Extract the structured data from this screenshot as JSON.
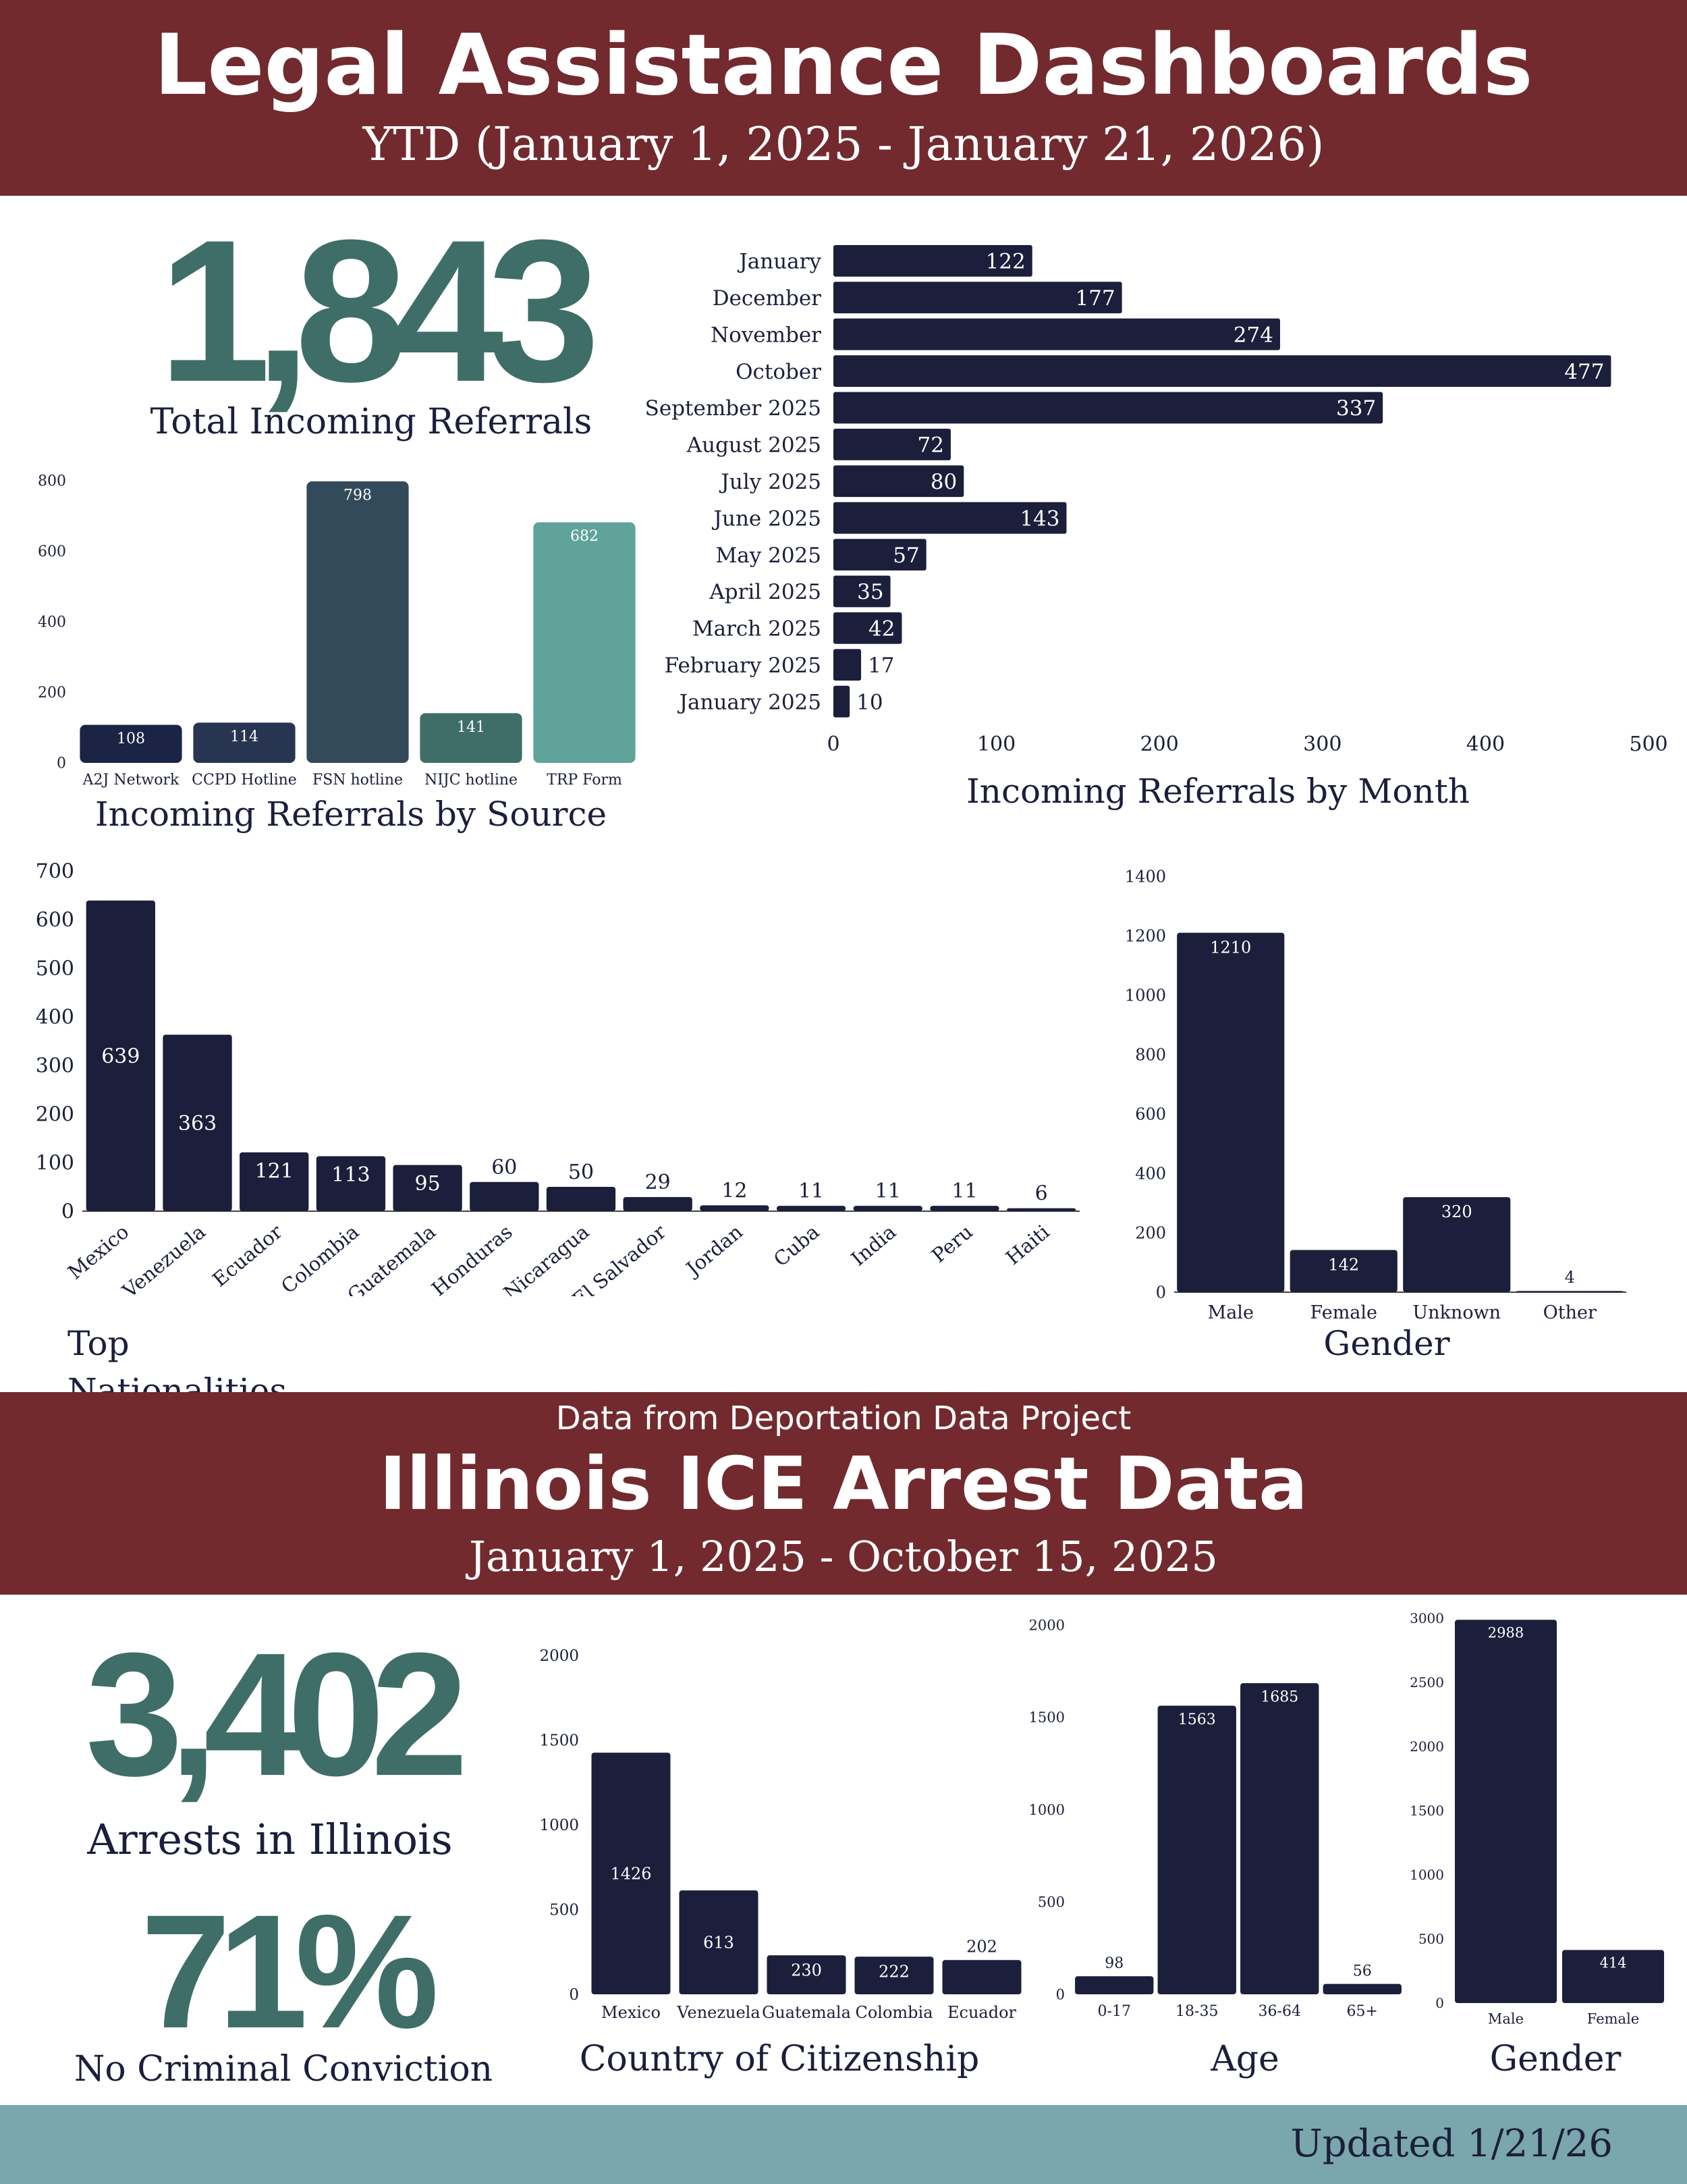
{
  "colors": {
    "header_bg": "#722a2f",
    "navy": "#1b1f3b",
    "teal_text": "#3f6e68",
    "footer_bg": "#7aa6ad",
    "source_colors": [
      "#1b2445",
      "#283552",
      "#334a5a",
      "#3f6e68",
      "#5fa39b"
    ]
  },
  "header": {
    "title": "Legal Assistance Dashboards",
    "subtitle": "YTD (January 1, 2025 - January 21, 2026)"
  },
  "kpi_referrals": {
    "value": "1,843",
    "label": "Total Incoming Referrals"
  },
  "section2": {
    "kicker": "Data from Deportation Data Project",
    "title": "Illinois ICE Arrest Data",
    "subtitle": "January 1, 2025 - October 15, 2025"
  },
  "kpi_arrests": {
    "value": "3,402",
    "label": "Arrests in Illinois"
  },
  "kpi_no_conviction": {
    "value": "71%",
    "label": "No Criminal Conviction"
  },
  "footer": {
    "updated": "Updated 1/21/26"
  },
  "chart_data": [
    {
      "id": "source",
      "type": "bar",
      "title": "Incoming Referrals by Source",
      "categories": [
        "A2J Network",
        "CCPD Hotline",
        "FSN hotline",
        "NIJC hotline",
        "TRP Form"
      ],
      "values": [
        108,
        114,
        798,
        141,
        682
      ],
      "ylim": [
        0,
        800
      ],
      "yticks": [
        0,
        200,
        400,
        600,
        800
      ]
    },
    {
      "id": "month",
      "type": "bar",
      "orientation": "horizontal",
      "title": "Incoming Referrals by Month",
      "categories": [
        "January",
        "December",
        "November",
        "October",
        "September 2025",
        "August 2025",
        "July 2025",
        "June 2025",
        "May 2025",
        "April 2025",
        "March 2025",
        "February 2025",
        "January 2025"
      ],
      "values": [
        122,
        177,
        274,
        477,
        337,
        72,
        80,
        143,
        57,
        35,
        42,
        17,
        10
      ],
      "xlim": [
        0,
        500
      ],
      "xticks": [
        0,
        100,
        200,
        300,
        400,
        500
      ]
    },
    {
      "id": "nationality",
      "type": "bar",
      "title": "Top Nationalities",
      "categories": [
        "Mexico",
        "Venezuela",
        "Ecuador",
        "Colombia",
        "Guatemala",
        "Honduras",
        "Nicaragua",
        "El Salvador",
        "Jordan",
        "Cuba",
        "India",
        "Peru",
        "Haiti"
      ],
      "values": [
        639,
        363,
        121,
        113,
        95,
        60,
        50,
        29,
        12,
        11,
        11,
        11,
        6
      ],
      "ylim": [
        0,
        700
      ],
      "yticks": [
        0,
        100,
        200,
        300,
        400,
        500,
        600,
        700
      ]
    },
    {
      "id": "gender_ref",
      "type": "bar",
      "title": "Gender",
      "categories": [
        "Male",
        "Female",
        "Unknown",
        "Other"
      ],
      "values": [
        1210,
        142,
        320,
        4
      ],
      "ylim": [
        0,
        1400
      ],
      "yticks": [
        0,
        200,
        400,
        600,
        800,
        1000,
        1200,
        1400
      ]
    },
    {
      "id": "citizenship",
      "type": "bar",
      "title": "Country of Citizenship",
      "categories": [
        "Mexico",
        "Venezuela",
        "Guatemala",
        "Colombia",
        "Ecuador"
      ],
      "values": [
        1426,
        613,
        230,
        222,
        202
      ],
      "ylim": [
        0,
        2000
      ],
      "yticks": [
        0,
        500,
        1000,
        1500,
        2000
      ]
    },
    {
      "id": "age",
      "type": "bar",
      "title": "Age",
      "categories": [
        "0-17",
        "18-35",
        "36-64",
        "65+"
      ],
      "values": [
        98,
        1563,
        1685,
        56
      ],
      "ylim": [
        0,
        2000
      ],
      "yticks": [
        0,
        500,
        1000,
        1500,
        2000
      ]
    },
    {
      "id": "gender_arrest",
      "type": "bar",
      "title": "Gender",
      "categories": [
        "Male",
        "Female"
      ],
      "values": [
        2988,
        414
      ],
      "ylim": [
        0,
        3000
      ],
      "yticks": [
        0,
        500,
        1000,
        1500,
        2000,
        2500,
        3000
      ]
    }
  ]
}
